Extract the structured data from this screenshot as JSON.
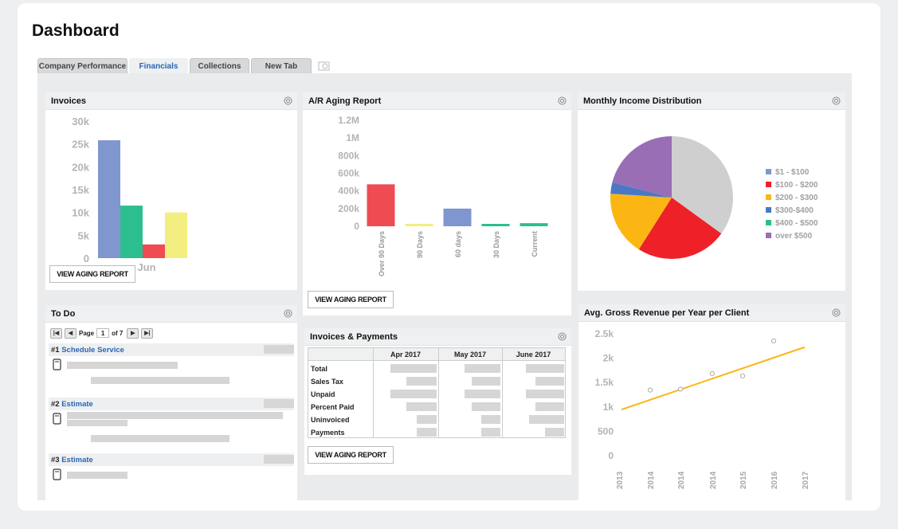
{
  "page_title": "Dashboard",
  "tabs": [
    {
      "label": "Company Performance"
    },
    {
      "label": "Financials"
    },
    {
      "label": "Collections"
    },
    {
      "label": "New Tab"
    }
  ],
  "invoices": {
    "title": "Invoices",
    "button": "VIEW AGING REPORT",
    "chart_data": {
      "type": "bar",
      "categories": [
        "Jun"
      ],
      "yticks": [
        "30k",
        "25k",
        "20k",
        "15k",
        "10k",
        "5k",
        "0"
      ],
      "ylim": [
        0,
        30000
      ],
      "series": [
        {
          "color": "#7f96ce",
          "values": [
            25800
          ]
        },
        {
          "color": "#2dbe8f",
          "values": [
            11500
          ]
        },
        {
          "color": "#ef4b53",
          "values": [
            3000
          ]
        },
        {
          "color": "#f2ee80",
          "values": [
            10000
          ]
        }
      ]
    }
  },
  "ar_aging": {
    "title": "A/R Aging Report",
    "button": "VIEW AGING REPORT",
    "chart_data": {
      "type": "bar",
      "categories": [
        "Over 90 Days",
        "90 Days",
        "60 days",
        "30 Days",
        "Current"
      ],
      "yticks": [
        "1.2M",
        "1M",
        "800k",
        "600k",
        "400k",
        "200k",
        "0"
      ],
      "ylim": [
        0,
        1200000
      ],
      "values": [
        475000,
        25000,
        200000,
        20000,
        35000
      ],
      "colors": [
        "#ef4b53",
        "#f2ee80",
        "#7f96ce",
        "#2dbe8f",
        "#2dbe8f"
      ]
    }
  },
  "income_dist": {
    "title": "Monthly Income Distribution",
    "chart_data": {
      "type": "pie",
      "legend": "right",
      "slices": [
        {
          "label": "$1 - $100",
          "color": "#7f96ce",
          "value": 0
        },
        {
          "label": "$100 - $200",
          "color": "#ee2129",
          "value": 24
        },
        {
          "label": "$200 - $300",
          "color": "#fbb614",
          "value": 17
        },
        {
          "label": "$300-$400",
          "color": "#4a78c4",
          "value": 3
        },
        {
          "label": "$400 - $500",
          "color": "#2dbe8f",
          "value": 0
        },
        {
          "label": "over $500",
          "color": "#9a6eb5",
          "value": 21
        },
        {
          "label": "",
          "color": "#cfcfcf",
          "value": 35
        }
      ]
    }
  },
  "todo": {
    "title": "To Do",
    "pager": {
      "page_label": "Page",
      "page": "1",
      "of": "of 7"
    },
    "items": [
      {
        "num": "#1",
        "label": "Schedule Service"
      },
      {
        "num": "#2",
        "label": "Estimate"
      },
      {
        "num": "#3",
        "label": "Estimate"
      }
    ]
  },
  "inv_payments": {
    "title": "Invoices & Payments",
    "button": "VIEW AGING REPORT",
    "columns": [
      "Apr 2017",
      "May 2017",
      "June 2017"
    ],
    "rows": [
      "Total",
      "Sales Tax",
      "Unpaid",
      "Percent Paid",
      "Uninvoiced",
      "Payments"
    ]
  },
  "gross_revenue": {
    "title": "Avg. Gross Revenue per Year per Client",
    "chart_data": {
      "type": "scatter",
      "yticks": [
        "2.5k",
        "2k",
        "1.5k",
        "1k",
        "500",
        "0"
      ],
      "ylim": [
        0,
        2500
      ],
      "xticks": [
        "2013",
        "2014",
        "2014",
        "2014",
        "2015",
        "2016",
        "2017"
      ],
      "points": [
        1330,
        1350,
        1670,
        1620,
        2340
      ],
      "trendline": [
        930,
        2210
      ],
      "trend_color": "#fbb614"
    }
  }
}
